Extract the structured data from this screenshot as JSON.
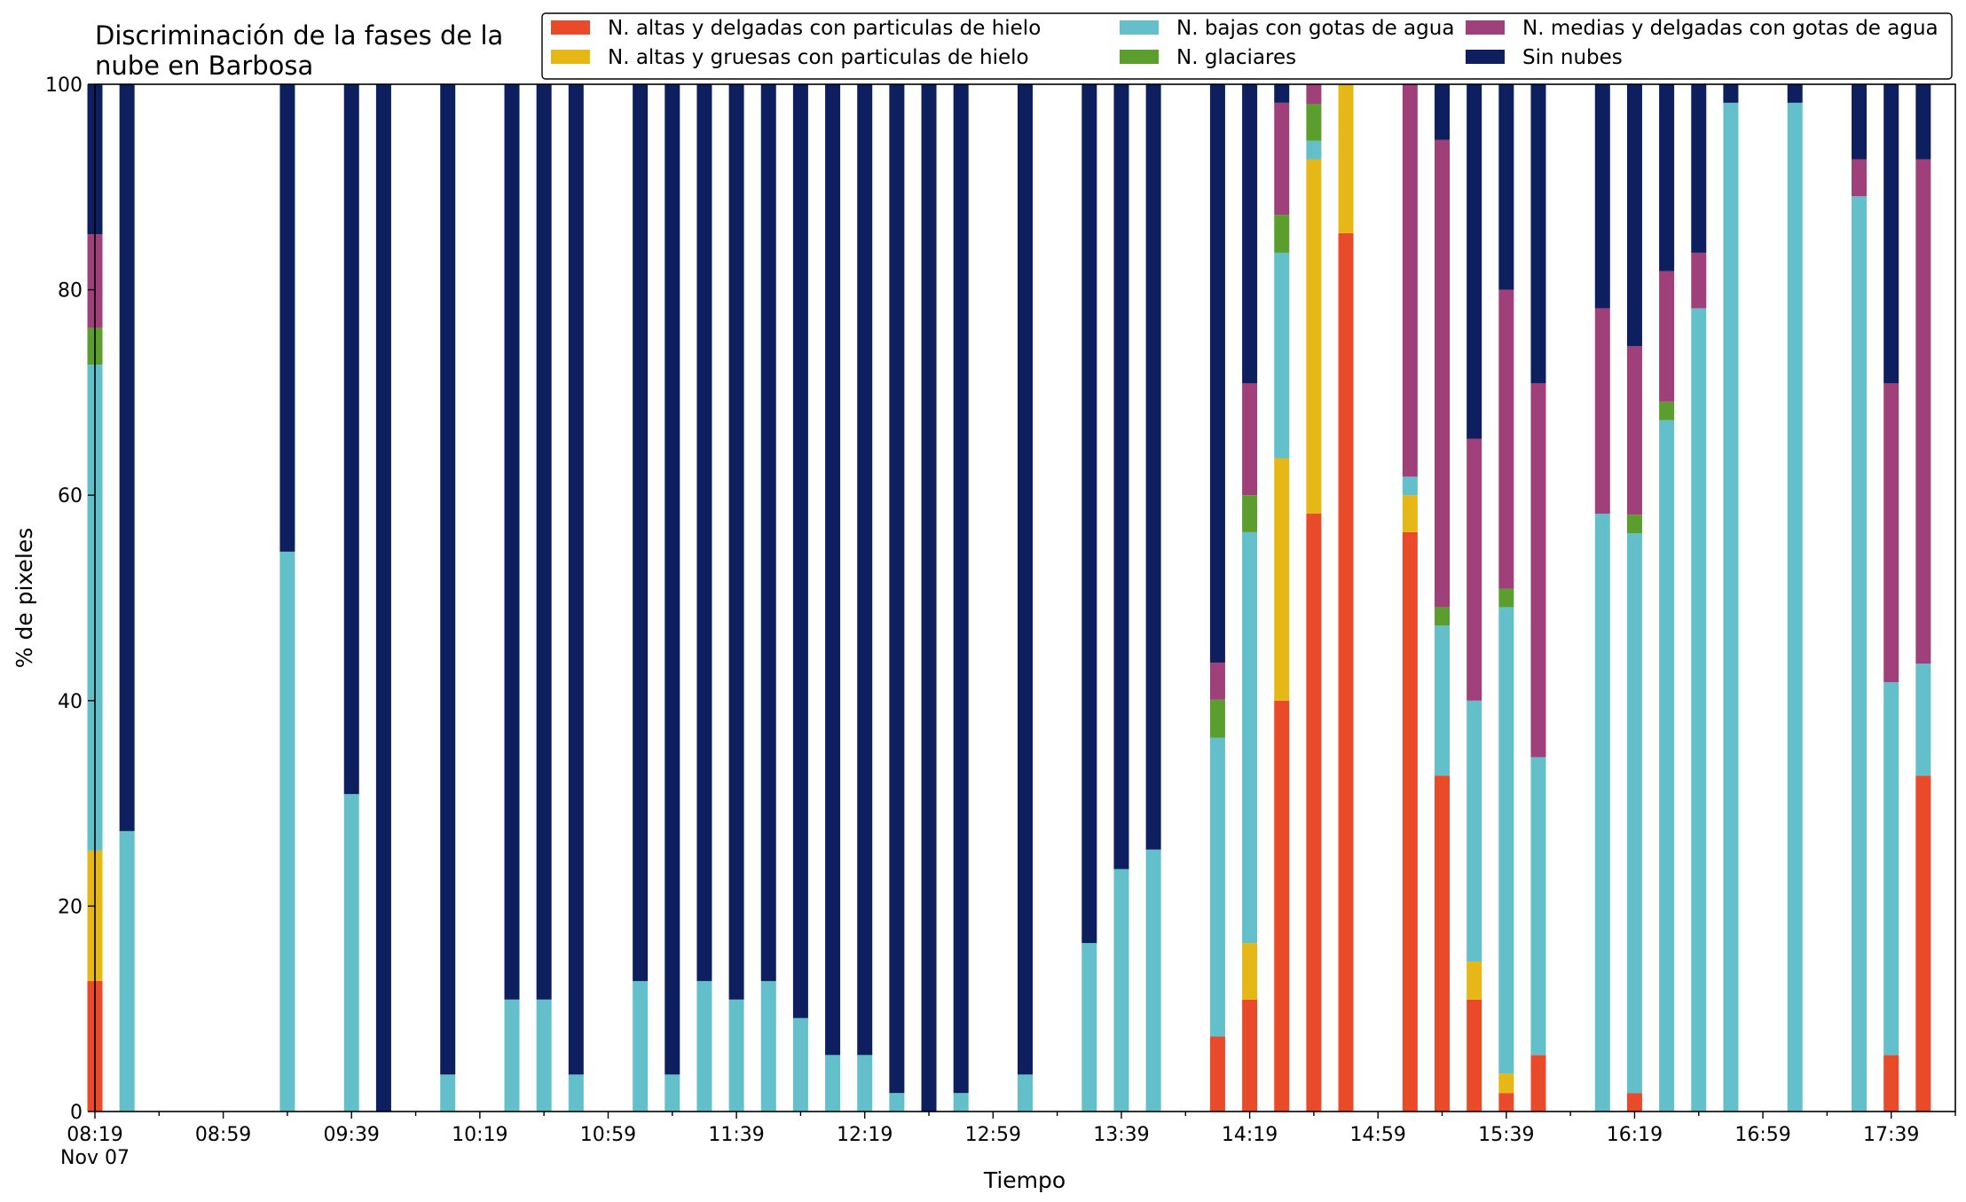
{
  "chart_data": {
    "type": "bar",
    "stacked": true,
    "title_lines": [
      "Discriminación de la fases de la",
      "nube en Barbosa"
    ],
    "xlabel": "Tiempo",
    "ylabel": "% de pixeles",
    "ylim": [
      0,
      100
    ],
    "yticks": [
      "0",
      "20",
      "40",
      "60",
      "80",
      "100"
    ],
    "x_start": "08:19",
    "x_end": "17:59",
    "bar_interval_minutes": 10,
    "x_tick_labels": [
      "08:19",
      "08:59",
      "09:39",
      "10:19",
      "10:59",
      "11:39",
      "12:19",
      "12:59",
      "13:39",
      "14:19",
      "14:59",
      "15:39",
      "16:19",
      "16:59",
      "17:39"
    ],
    "x_tick_sublabel": "Nov 07",
    "legend_position": "top-right",
    "grid": false,
    "categories": [
      "08:19",
      "08:29",
      "08:39",
      "08:49",
      "08:59",
      "09:09",
      "09:19",
      "09:29",
      "09:39",
      "09:49",
      "09:59",
      "10:09",
      "10:19",
      "10:29",
      "10:39",
      "10:49",
      "10:59",
      "11:09",
      "11:19",
      "11:29",
      "11:39",
      "11:49",
      "11:59",
      "12:09",
      "12:19",
      "12:29",
      "12:39",
      "12:49",
      "12:59",
      "13:09",
      "13:19",
      "13:29",
      "13:39",
      "13:49",
      "13:59",
      "14:09",
      "14:19",
      "14:29",
      "14:39",
      "14:49",
      "14:59",
      "15:09",
      "15:19",
      "15:29",
      "15:39",
      "15:49",
      "15:59",
      "16:09",
      "16:19",
      "16:29",
      "16:39",
      "16:49",
      "16:59",
      "17:09",
      "17:19",
      "17:29",
      "17:39",
      "17:49"
    ],
    "series": [
      {
        "name": "N. altas y delgadas con particulas de hielo",
        "color": "#e84a2a",
        "values": [
          12.7,
          null,
          null,
          null,
          null,
          null,
          null,
          null,
          null,
          null,
          null,
          null,
          null,
          null,
          null,
          null,
          null,
          null,
          null,
          null,
          null,
          null,
          null,
          null,
          null,
          null,
          null,
          null,
          null,
          null,
          null,
          null,
          null,
          null,
          null,
          7.3,
          10.9,
          40.0,
          58.2,
          85.5,
          null,
          56.4,
          32.7,
          10.9,
          1.8,
          5.5,
          null,
          null,
          1.8,
          null,
          null,
          null,
          null,
          null,
          null,
          null,
          5.5,
          32.7
        ]
      },
      {
        "name": "N. altas y gruesas con particulas de hielo",
        "color": "#e6b817",
        "values": [
          12.7,
          null,
          null,
          null,
          null,
          null,
          null,
          null,
          null,
          null,
          null,
          null,
          null,
          null,
          null,
          null,
          null,
          null,
          null,
          null,
          null,
          null,
          null,
          null,
          null,
          null,
          null,
          null,
          null,
          null,
          null,
          null,
          null,
          null,
          null,
          null,
          5.5,
          23.6,
          34.5,
          14.5,
          null,
          3.6,
          null,
          3.7,
          1.9,
          null,
          null,
          null,
          null,
          null,
          null,
          null,
          null,
          null,
          null,
          null,
          null,
          null
        ]
      },
      {
        "name": "N. bajas con gotas de agua",
        "color": "#63bfc9",
        "values": [
          47.3,
          27.3,
          null,
          null,
          null,
          null,
          54.5,
          null,
          30.9,
          null,
          null,
          3.6,
          null,
          10.9,
          10.9,
          3.6,
          null,
          12.7,
          3.6,
          12.7,
          10.9,
          12.7,
          9.1,
          5.5,
          5.5,
          1.8,
          null,
          1.8,
          null,
          3.6,
          null,
          16.4,
          23.6,
          25.5,
          null,
          29.1,
          40.0,
          20.0,
          1.8,
          null,
          null,
          1.8,
          14.6,
          25.4,
          45.4,
          29.0,
          null,
          58.2,
          54.5,
          67.3,
          78.2,
          98.2,
          null,
          98.2,
          null,
          89.1,
          36.3,
          10.9
        ]
      },
      {
        "name": "N. glaciares",
        "color": "#5c9e2e",
        "values": [
          3.6,
          null,
          null,
          null,
          null,
          null,
          null,
          null,
          null,
          null,
          null,
          null,
          null,
          null,
          null,
          null,
          null,
          null,
          null,
          null,
          null,
          null,
          null,
          null,
          null,
          null,
          null,
          null,
          null,
          null,
          null,
          null,
          null,
          null,
          null,
          3.7,
          3.6,
          3.7,
          3.6,
          null,
          null,
          null,
          1.8,
          null,
          1.8,
          null,
          null,
          null,
          1.8,
          1.8,
          null,
          null,
          null,
          null,
          null,
          null,
          null,
          null
        ]
      },
      {
        "name": "N. medias y delgadas con gotas de agua",
        "color": "#a0407a",
        "values": [
          9.1,
          null,
          null,
          null,
          null,
          null,
          null,
          null,
          null,
          null,
          null,
          null,
          null,
          null,
          null,
          null,
          null,
          null,
          null,
          null,
          null,
          null,
          null,
          null,
          null,
          null,
          null,
          null,
          null,
          null,
          null,
          null,
          null,
          null,
          null,
          3.6,
          10.9,
          10.9,
          1.9,
          null,
          null,
          38.2,
          45.5,
          25.5,
          29.1,
          36.4,
          null,
          20.0,
          16.4,
          12.7,
          5.4,
          null,
          null,
          null,
          null,
          3.6,
          29.1,
          49.1
        ]
      },
      {
        "name": "Sin nubes",
        "color": "#0d1f5e",
        "values": [
          14.6,
          72.7,
          null,
          null,
          null,
          null,
          45.5,
          null,
          69.1,
          100,
          null,
          96.4,
          null,
          89.1,
          89.1,
          96.4,
          null,
          87.3,
          96.4,
          87.3,
          89.1,
          87.3,
          90.9,
          94.5,
          94.5,
          98.2,
          100,
          98.2,
          null,
          96.4,
          null,
          83.6,
          76.4,
          74.5,
          null,
          56.3,
          29.1,
          1.8,
          null,
          null,
          null,
          null,
          5.4,
          34.5,
          20.0,
          29.1,
          null,
          21.8,
          25.5,
          18.2,
          16.4,
          1.8,
          null,
          1.8,
          null,
          7.3,
          29.1,
          7.3
        ]
      }
    ]
  }
}
